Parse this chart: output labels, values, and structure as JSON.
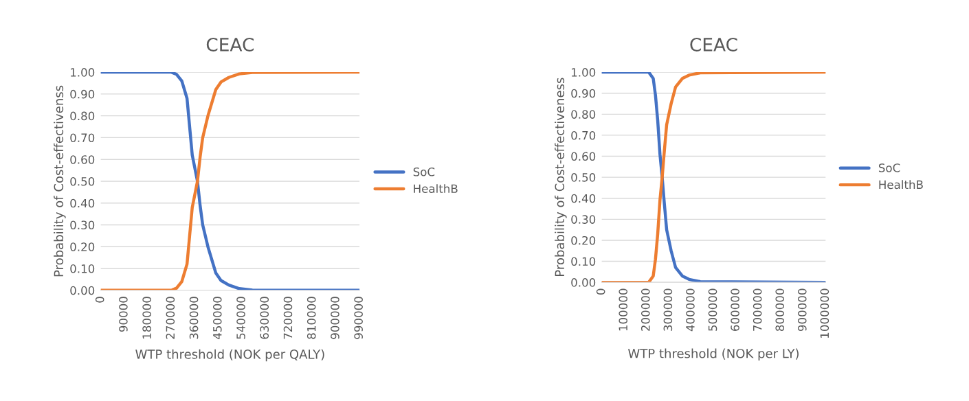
{
  "chart_data": [
    {
      "type": "line",
      "title": "CEAC",
      "xlabel": "WTP threshold (NOK per QALY)",
      "ylabel": "Probability of Cost-effectivenss",
      "xlim": [
        0,
        990000
      ],
      "xticks": [
        0,
        90000,
        180000,
        270000,
        360000,
        450000,
        540000,
        630000,
        720000,
        810000,
        900000,
        990000
      ],
      "ylim": [
        0,
        1
      ],
      "yticks": [
        {
          "value": 0,
          "label": "0.00"
        },
        {
          "value": 0.1,
          "label": "0.10"
        },
        {
          "value": 0.2,
          "label": "0.20"
        },
        {
          "value": 0.3,
          "label": "0.30"
        },
        {
          "value": 0.4,
          "label": "0.40"
        },
        {
          "value": 0.5,
          "label": "0.50"
        },
        {
          "value": 0.6,
          "label": "0.60"
        },
        {
          "value": 0.7,
          "label": "0.70"
        },
        {
          "value": 0.8,
          "label": "0.80"
        },
        {
          "value": 0.9,
          "label": "0.90"
        },
        {
          "value": 1,
          "label": "1.00"
        }
      ],
      "grid": "y",
      "legend": "right",
      "marker": "none",
      "line_style": "solid",
      "x": [
        0,
        270000,
        290000,
        310000,
        330000,
        340000,
        350000,
        370000,
        380000,
        390000,
        410000,
        440000,
        460000,
        490000,
        530000,
        580000,
        990000
      ],
      "series": [
        {
          "name": "SoC",
          "color": "#4472c4",
          "values": [
            1.0,
            1.0,
            0.99,
            0.96,
            0.88,
            0.75,
            0.62,
            0.5,
            0.39,
            0.3,
            0.2,
            0.08,
            0.045,
            0.024,
            0.008,
            0.001,
            0.0
          ]
        },
        {
          "name": "HealthB",
          "color": "#ed7d31",
          "values": [
            0.0,
            0.0,
            0.01,
            0.04,
            0.12,
            0.25,
            0.38,
            0.5,
            0.61,
            0.7,
            0.8,
            0.92,
            0.955,
            0.976,
            0.992,
            0.999,
            1.0
          ]
        }
      ]
    },
    {
      "type": "line",
      "title": "CEAC",
      "xlabel": "WTP threshold (NOK per LY)",
      "ylabel": "Probability of Cost-effectiveness",
      "xlim": [
        0,
        1000000
      ],
      "xticks": [
        0,
        100000,
        200000,
        300000,
        400000,
        500000,
        600000,
        700000,
        800000,
        900000,
        1000000
      ],
      "ylim": [
        0,
        1
      ],
      "yticks": [
        {
          "value": 0,
          "label": "0.00"
        },
        {
          "value": 0.1,
          "label": "0.10"
        },
        {
          "value": 0.2,
          "label": "0.20"
        },
        {
          "value": 0.3,
          "label": "0.30"
        },
        {
          "value": 0.4,
          "label": "0.40"
        },
        {
          "value": 0.5,
          "label": "0.50"
        },
        {
          "value": 0.6,
          "label": "0.60"
        },
        {
          "value": 0.7,
          "label": "0.70"
        },
        {
          "value": 0.8,
          "label": "0.80"
        },
        {
          "value": 0.9,
          "label": "0.90"
        },
        {
          "value": 1,
          "label": "1.00"
        }
      ],
      "grid": "y",
      "legend": "right",
      "marker": "none",
      "line_style": "solid",
      "x": [
        0,
        210000,
        230000,
        240000,
        250000,
        260000,
        270000,
        280000,
        290000,
        310000,
        330000,
        360000,
        390000,
        440000,
        1000000
      ],
      "series": [
        {
          "name": "SoC",
          "color": "#4472c4",
          "values": [
            1.0,
            1.0,
            0.97,
            0.89,
            0.77,
            0.61,
            0.5,
            0.37,
            0.25,
            0.15,
            0.07,
            0.03,
            0.014,
            0.003,
            0.0
          ]
        },
        {
          "name": "HealthB",
          "color": "#ed7d31",
          "values": [
            0.0,
            0.0,
            0.03,
            0.11,
            0.23,
            0.39,
            0.5,
            0.63,
            0.75,
            0.85,
            0.93,
            0.97,
            0.986,
            0.997,
            1.0
          ]
        }
      ]
    }
  ]
}
